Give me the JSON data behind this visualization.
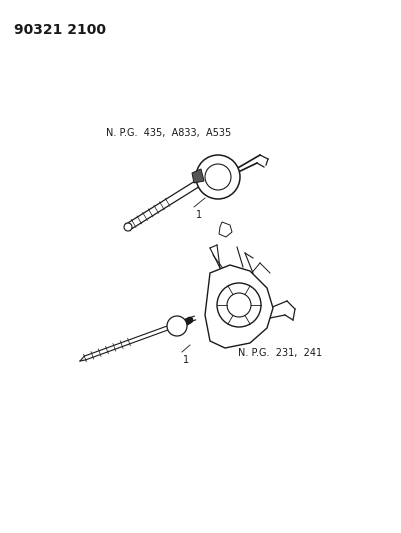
{
  "title": "90321 2100",
  "bg_color": "#ffffff",
  "text_color": "#1a1a1a",
  "label1_text": "N. P.G.  435,  A833,  A535",
  "label2_text": "N. P.G.  231,  241",
  "fontsize_title": 10,
  "fontsize_npg": 7,
  "fontsize_item": 7
}
